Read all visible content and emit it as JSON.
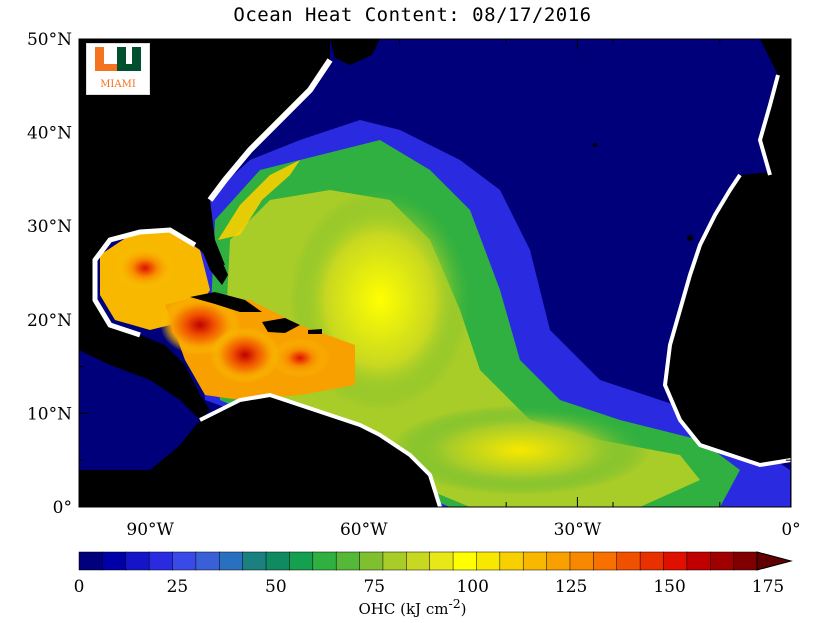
{
  "title": "Ocean Heat Content: 08/17/2016",
  "logo": {
    "text": "MIAMI",
    "colors": {
      "orange": "#f47321",
      "green": "#005030"
    }
  },
  "map": {
    "lon_range": [
      -100,
      0
    ],
    "lat_range": [
      0,
      50
    ],
    "x_ticks": [
      {
        "value": -90,
        "label": "90°W"
      },
      {
        "value": -60,
        "label": "60°W"
      },
      {
        "value": -30,
        "label": "30°W"
      },
      {
        "value": 0,
        "label": "0°"
      }
    ],
    "y_ticks": [
      {
        "value": 50,
        "label": "50°N"
      },
      {
        "value": 40,
        "label": "40°N"
      },
      {
        "value": 30,
        "label": "30°N"
      },
      {
        "value": 20,
        "label": "20°N"
      },
      {
        "value": 10,
        "label": "10°N"
      },
      {
        "value": 0,
        "label": "0°"
      }
    ],
    "land_color": "#000000",
    "ice_or_nodata_color": "#ffffff",
    "deep_ocean_color": "#00007a"
  },
  "colorbar": {
    "title": "OHC (kJ cm",
    "title_sup": "-2",
    "title_end": ")",
    "min": 0,
    "max": 175,
    "labels": [
      "0",
      "25",
      "50",
      "75",
      "100",
      "125",
      "150",
      "175"
    ],
    "colors": [
      "#00007a",
      "#0000a8",
      "#1414c8",
      "#2a2ae0",
      "#3a4ae8",
      "#3a60d8",
      "#2a70c0",
      "#1a8080",
      "#108a60",
      "#15a050",
      "#30b040",
      "#55b838",
      "#80c030",
      "#a8cc28",
      "#c8d820",
      "#e8e818",
      "#ffff00",
      "#f8e800",
      "#f8d000",
      "#f8b800",
      "#f8a000",
      "#f88800",
      "#f87000",
      "#f05000",
      "#e83000",
      "#e01000",
      "#c00000",
      "#a00000",
      "#800000"
    ],
    "arrow_color": "#600000"
  }
}
